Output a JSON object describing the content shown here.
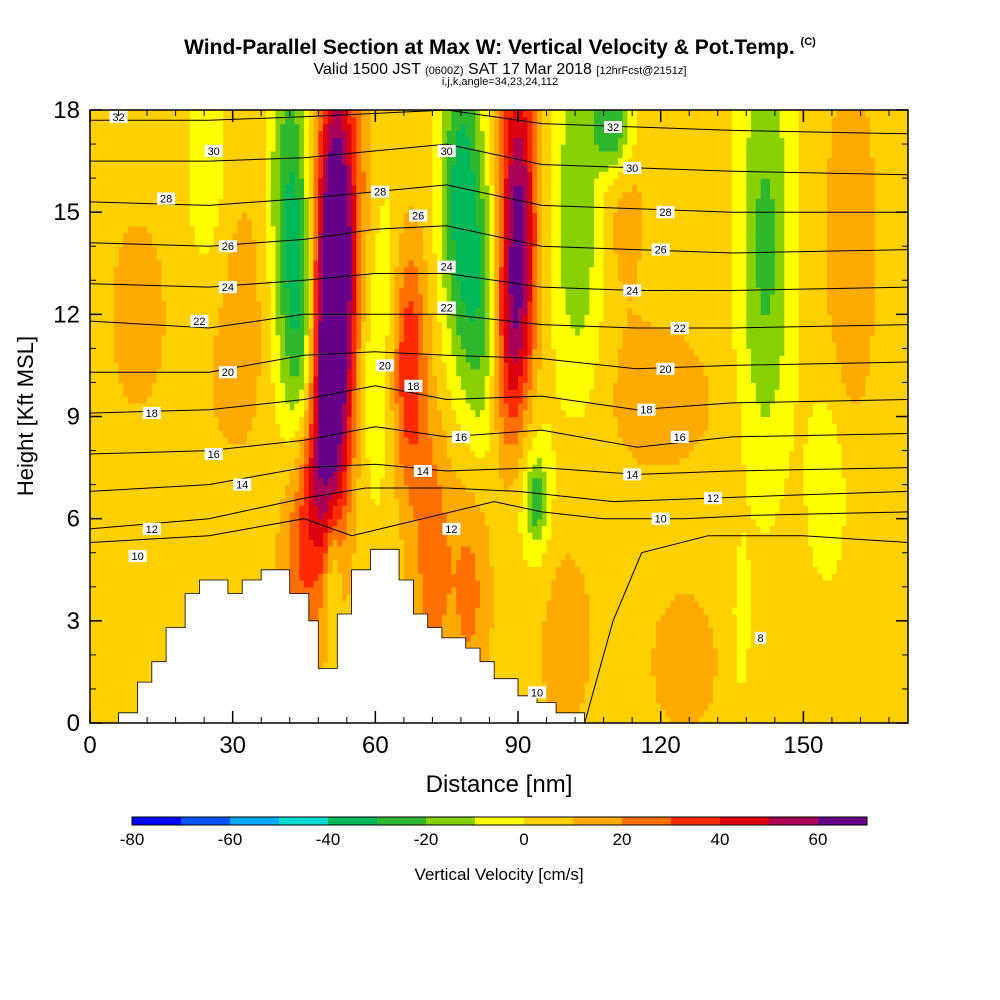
{
  "header": {
    "title_main": "Wind-Parallel Section at Max W: Vertical Velocity & Pot.Temp.",
    "title_units": "(C)",
    "valid_prefix": "Valid 1500 JST",
    "valid_utc": "(0600Z)",
    "valid_date": "SAT 17 Mar 2018",
    "valid_fcst": "[12hrFcst@2151z]",
    "indices": "i,j,k,angle=34,23,24,112"
  },
  "chart_data": {
    "type": "heatmap",
    "xlabel": "Distance [nm]",
    "ylabel": "Height [Kft MSL]",
    "xlim": [
      0,
      172
    ],
    "ylim": [
      0,
      18
    ],
    "x_ticks": [
      0,
      30,
      60,
      90,
      120,
      150
    ],
    "y_ticks": [
      0,
      3,
      6,
      9,
      12,
      15,
      18
    ],
    "colorbar": {
      "label": "Vertical Velocity [cm/s]",
      "tick_labels": [
        "-80",
        "-60",
        "-40",
        "-20",
        "0",
        "20",
        "40",
        "60"
      ],
      "tick_values": [
        -80,
        -60,
        -40,
        -20,
        0,
        20,
        40,
        60
      ],
      "bins": [
        -80,
        -70,
        -60,
        -50,
        -40,
        -30,
        -20,
        -10,
        0,
        10,
        20,
        30,
        40,
        50,
        60,
        70
      ],
      "colors": [
        "#0000ff",
        "#0055ff",
        "#00aaff",
        "#00d8d0",
        "#00b85a",
        "#2eb82e",
        "#88d000",
        "#ffff00",
        "#ffd000",
        "#ffaa00",
        "#ff7000",
        "#ff2a00",
        "#dd0011",
        "#aa0055",
        "#660088"
      ]
    },
    "terrain": [
      [
        0,
        0
      ],
      [
        6,
        0
      ],
      [
        6,
        0.3
      ],
      [
        10,
        0.3
      ],
      [
        10,
        1.2
      ],
      [
        13,
        1.2
      ],
      [
        13,
        1.8
      ],
      [
        16,
        1.8
      ],
      [
        16,
        2.8
      ],
      [
        20,
        2.8
      ],
      [
        20,
        3.8
      ],
      [
        23,
        3.8
      ],
      [
        23,
        4.2
      ],
      [
        29,
        4.2
      ],
      [
        29,
        3.8
      ],
      [
        32,
        3.8
      ],
      [
        32,
        4.2
      ],
      [
        36,
        4.2
      ],
      [
        36,
        4.5
      ],
      [
        42,
        4.5
      ],
      [
        42,
        3.8
      ],
      [
        46,
        3.8
      ],
      [
        46,
        3.0
      ],
      [
        48,
        3.0
      ],
      [
        48,
        1.6
      ],
      [
        52,
        1.6
      ],
      [
        52,
        3.2
      ],
      [
        55,
        3.2
      ],
      [
        55,
        4.5
      ],
      [
        59,
        4.5
      ],
      [
        59,
        5.1
      ],
      [
        65,
        5.1
      ],
      [
        65,
        4.2
      ],
      [
        68,
        4.2
      ],
      [
        68,
        3.2
      ],
      [
        71,
        3.2
      ],
      [
        71,
        2.8
      ],
      [
        74,
        2.8
      ],
      [
        74,
        2.5
      ],
      [
        79,
        2.5
      ],
      [
        79,
        2.2
      ],
      [
        82,
        2.2
      ],
      [
        82,
        1.8
      ],
      [
        85,
        1.8
      ],
      [
        85,
        1.3
      ],
      [
        90,
        1.3
      ],
      [
        90,
        0.8
      ],
      [
        94,
        0.8
      ],
      [
        94,
        0.6
      ],
      [
        98,
        0.6
      ],
      [
        98,
        0.3
      ],
      [
        104,
        0.3
      ],
      [
        104,
        0
      ]
    ],
    "vertical_velocity_features": [
      {
        "x": 52,
        "y": 14.0,
        "sx": 3.0,
        "sy": 4.0,
        "value": 70
      },
      {
        "x": 50,
        "y": 10.0,
        "sx": 3.0,
        "sy": 3.5,
        "value": 45
      },
      {
        "x": 47,
        "y": 7.0,
        "sx": 3.0,
        "sy": 2.0,
        "value": 22
      },
      {
        "x": 90,
        "y": 15.0,
        "sx": 2.8,
        "sy": 3.5,
        "value": 55
      },
      {
        "x": 88,
        "y": 11.0,
        "sx": 3.0,
        "sy": 2.5,
        "value": 28
      },
      {
        "x": 67,
        "y": 10.5,
        "sx": 2.5,
        "sy": 2.5,
        "value": 35
      },
      {
        "x": 72,
        "y": 5.0,
        "sx": 3.0,
        "sy": 3.0,
        "value": 20
      },
      {
        "x": 80,
        "y": 4.0,
        "sx": 3.0,
        "sy": 2.5,
        "value": 18
      },
      {
        "x": 44,
        "y": 4.5,
        "sx": 3.0,
        "sy": 2.5,
        "value": 20
      },
      {
        "x": 59,
        "y": 15.5,
        "sx": 2.5,
        "sy": 3.0,
        "value": 18
      },
      {
        "x": 30,
        "y": 12.0,
        "sx": 6.0,
        "sy": 3.0,
        "value": 12
      },
      {
        "x": 10,
        "y": 12.0,
        "sx": 4.0,
        "sy": 2.0,
        "value": 12
      },
      {
        "x": 160,
        "y": 14.0,
        "sx": 3.5,
        "sy": 3.5,
        "value": 15
      },
      {
        "x": 120,
        "y": 9.5,
        "sx": 8.0,
        "sy": 1.5,
        "value": 12
      },
      {
        "x": 110,
        "y": 15.5,
        "sx": 5.0,
        "sy": 2.5,
        "value": 12
      },
      {
        "x": 125,
        "y": 1.8,
        "sx": 5.0,
        "sy": 1.5,
        "value": 12
      },
      {
        "x": 100,
        "y": 2.5,
        "sx": 4.0,
        "sy": 2.0,
        "value": 12
      },
      {
        "x": 42,
        "y": 15.0,
        "sx": 3.0,
        "sy": 4.0,
        "value": -35
      },
      {
        "x": 45,
        "y": 11.0,
        "sx": 2.5,
        "sy": 3.0,
        "value": -25
      },
      {
        "x": 60,
        "y": 13.0,
        "sx": 3.0,
        "sy": 4.0,
        "value": -22
      },
      {
        "x": 78,
        "y": 15.5,
        "sx": 3.0,
        "sy": 3.5,
        "value": -40
      },
      {
        "x": 83,
        "y": 12.0,
        "sx": 3.0,
        "sy": 3.0,
        "value": -28
      },
      {
        "x": 103,
        "y": 15.0,
        "sx": 4.0,
        "sy": 3.5,
        "value": -28
      },
      {
        "x": 110,
        "y": 17.5,
        "sx": 3.0,
        "sy": 1.0,
        "value": -38
      },
      {
        "x": 142,
        "y": 14.0,
        "sx": 4.0,
        "sy": 4.5,
        "value": -28
      },
      {
        "x": 25,
        "y": 15.5,
        "sx": 3.5,
        "sy": 3.0,
        "value": -14
      },
      {
        "x": 93,
        "y": 7.0,
        "sx": 3.0,
        "sy": 2.0,
        "value": -14
      },
      {
        "x": 94,
        "y": 6.5,
        "sx": 1.5,
        "sy": 0.8,
        "value": -22
      },
      {
        "x": 155,
        "y": 7.0,
        "sx": 3.0,
        "sy": 2.0,
        "value": -14
      },
      {
        "x": 137,
        "y": 3.0,
        "sx": 1.2,
        "sy": 1.5,
        "value": -12
      },
      {
        "x": 51,
        "y": 4.5,
        "sx": 1.2,
        "sy": 1.2,
        "value": -20
      }
    ],
    "potential_temperature_contours": [
      {
        "theta": 8,
        "points": [
          [
            104,
            0
          ],
          [
            106,
            1
          ],
          [
            110,
            3
          ],
          [
            116,
            5
          ],
          [
            130,
            5.5
          ],
          [
            150,
            5.5
          ],
          [
            172,
            5.3
          ]
        ]
      },
      {
        "theta": 10,
        "points": [
          [
            0,
            5.3
          ],
          [
            25,
            5.5
          ],
          [
            45,
            6.0
          ],
          [
            55,
            5.5
          ],
          [
            70,
            6.0
          ],
          [
            85,
            6.5
          ],
          [
            95,
            6.2
          ],
          [
            108,
            6.0
          ],
          [
            125,
            6.0
          ],
          [
            140,
            6.1
          ],
          [
            172,
            6.2
          ]
        ]
      },
      {
        "theta": 12,
        "points": [
          [
            0,
            5.7
          ],
          [
            25,
            6.0
          ],
          [
            45,
            6.6
          ],
          [
            58,
            6.9
          ],
          [
            75,
            6.9
          ],
          [
            90,
            6.8
          ],
          [
            110,
            6.5
          ],
          [
            130,
            6.6
          ],
          [
            150,
            6.7
          ],
          [
            172,
            6.8
          ]
        ]
      },
      {
        "theta": 14,
        "points": [
          [
            0,
            6.8
          ],
          [
            25,
            7.0
          ],
          [
            45,
            7.5
          ],
          [
            60,
            7.6
          ],
          [
            75,
            7.4
          ],
          [
            95,
            7.5
          ],
          [
            115,
            7.3
          ],
          [
            135,
            7.4
          ],
          [
            172,
            7.5
          ]
        ]
      },
      {
        "theta": 16,
        "points": [
          [
            0,
            7.9
          ],
          [
            25,
            8.0
          ],
          [
            45,
            8.3
          ],
          [
            60,
            8.7
          ],
          [
            75,
            8.4
          ],
          [
            95,
            8.6
          ],
          [
            115,
            8.1
          ],
          [
            135,
            8.4
          ],
          [
            172,
            8.5
          ]
        ]
      },
      {
        "theta": 18,
        "points": [
          [
            0,
            9.1
          ],
          [
            25,
            9.2
          ],
          [
            45,
            9.5
          ],
          [
            60,
            9.9
          ],
          [
            75,
            9.5
          ],
          [
            95,
            9.6
          ],
          [
            115,
            9.2
          ],
          [
            135,
            9.4
          ],
          [
            172,
            9.5
          ]
        ]
      },
      {
        "theta": 20,
        "points": [
          [
            0,
            10.3
          ],
          [
            25,
            10.3
          ],
          [
            45,
            10.8
          ],
          [
            60,
            10.9
          ],
          [
            75,
            10.8
          ],
          [
            95,
            10.7
          ],
          [
            115,
            10.4
          ],
          [
            135,
            10.5
          ],
          [
            172,
            10.6
          ]
        ]
      },
      {
        "theta": 22,
        "points": [
          [
            0,
            11.8
          ],
          [
            25,
            11.6
          ],
          [
            45,
            12.0
          ],
          [
            60,
            12.0
          ],
          [
            75,
            12.0
          ],
          [
            95,
            11.7
          ],
          [
            115,
            11.6
          ],
          [
            135,
            11.6
          ],
          [
            172,
            11.7
          ]
        ]
      },
      {
        "theta": 24,
        "points": [
          [
            0,
            12.9
          ],
          [
            25,
            12.8
          ],
          [
            45,
            13.0
          ],
          [
            60,
            13.2
          ],
          [
            75,
            13.2
          ],
          [
            95,
            12.8
          ],
          [
            115,
            12.7
          ],
          [
            135,
            12.7
          ],
          [
            172,
            12.8
          ]
        ]
      },
      {
        "theta": 26,
        "points": [
          [
            0,
            14.1
          ],
          [
            25,
            14.0
          ],
          [
            45,
            14.2
          ],
          [
            60,
            14.5
          ],
          [
            75,
            14.6
          ],
          [
            95,
            14.0
          ],
          [
            115,
            13.9
          ],
          [
            135,
            13.8
          ],
          [
            172,
            13.9
          ]
        ]
      },
      {
        "theta": 28,
        "points": [
          [
            0,
            15.3
          ],
          [
            25,
            15.2
          ],
          [
            45,
            15.4
          ],
          [
            60,
            15.6
          ],
          [
            75,
            15.8
          ],
          [
            95,
            15.2
          ],
          [
            115,
            15.1
          ],
          [
            135,
            15.0
          ],
          [
            172,
            15.0
          ]
        ]
      },
      {
        "theta": 30,
        "points": [
          [
            0,
            16.5
          ],
          [
            25,
            16.5
          ],
          [
            45,
            16.6
          ],
          [
            60,
            16.8
          ],
          [
            75,
            17.0
          ],
          [
            95,
            16.4
          ],
          [
            115,
            16.3
          ],
          [
            135,
            16.2
          ],
          [
            172,
            16.1
          ]
        ]
      },
      {
        "theta": 32,
        "points": [
          [
            0,
            17.7
          ],
          [
            25,
            17.7
          ],
          [
            45,
            17.8
          ],
          [
            60,
            17.9
          ],
          [
            75,
            18.0
          ],
          [
            95,
            17.6
          ],
          [
            115,
            17.5
          ],
          [
            135,
            17.4
          ],
          [
            172,
            17.3
          ]
        ]
      }
    ],
    "contour_labels": [
      {
        "text": "32",
        "x": 6,
        "y": 17.8
      },
      {
        "text": "30",
        "x": 26,
        "y": 16.8
      },
      {
        "text": "28",
        "x": 16,
        "y": 15.4
      },
      {
        "text": "26",
        "x": 29,
        "y": 14.0
      },
      {
        "text": "24",
        "x": 29,
        "y": 12.8
      },
      {
        "text": "22",
        "x": 23,
        "y": 11.8
      },
      {
        "text": "20",
        "x": 29,
        "y": 10.3
      },
      {
        "text": "18",
        "x": 13,
        "y": 9.1
      },
      {
        "text": "16",
        "x": 26,
        "y": 7.9
      },
      {
        "text": "14",
        "x": 32,
        "y": 7.0
      },
      {
        "text": "12",
        "x": 13,
        "y": 5.7
      },
      {
        "text": "10",
        "x": 10,
        "y": 4.9
      },
      {
        "text": "28",
        "x": 61,
        "y": 15.6
      },
      {
        "text": "26",
        "x": 69,
        "y": 14.9
      },
      {
        "text": "30",
        "x": 75,
        "y": 16.8
      },
      {
        "text": "24",
        "x": 75,
        "y": 13.4
      },
      {
        "text": "22",
        "x": 75,
        "y": 12.2
      },
      {
        "text": "20",
        "x": 62,
        "y": 10.5
      },
      {
        "text": "18",
        "x": 68,
        "y": 9.9
      },
      {
        "text": "16",
        "x": 78,
        "y": 8.4
      },
      {
        "text": "14",
        "x": 70,
        "y": 7.4
      },
      {
        "text": "12",
        "x": 76,
        "y": 5.7
      },
      {
        "text": "10",
        "x": 94,
        "y": 0.9
      },
      {
        "text": "32",
        "x": 110,
        "y": 17.5
      },
      {
        "text": "30",
        "x": 114,
        "y": 16.3
      },
      {
        "text": "28",
        "x": 121,
        "y": 15.0
      },
      {
        "text": "26",
        "x": 120,
        "y": 13.9
      },
      {
        "text": "24",
        "x": 114,
        "y": 12.7
      },
      {
        "text": "22",
        "x": 124,
        "y": 11.6
      },
      {
        "text": "20",
        "x": 121,
        "y": 10.4
      },
      {
        "text": "18",
        "x": 117,
        "y": 9.2
      },
      {
        "text": "16",
        "x": 124,
        "y": 8.4
      },
      {
        "text": "14",
        "x": 114,
        "y": 7.3
      },
      {
        "text": "12",
        "x": 131,
        "y": 6.6
      },
      {
        "text": "10",
        "x": 120,
        "y": 6.0
      },
      {
        "text": "8",
        "x": 141,
        "y": 2.5
      }
    ]
  }
}
